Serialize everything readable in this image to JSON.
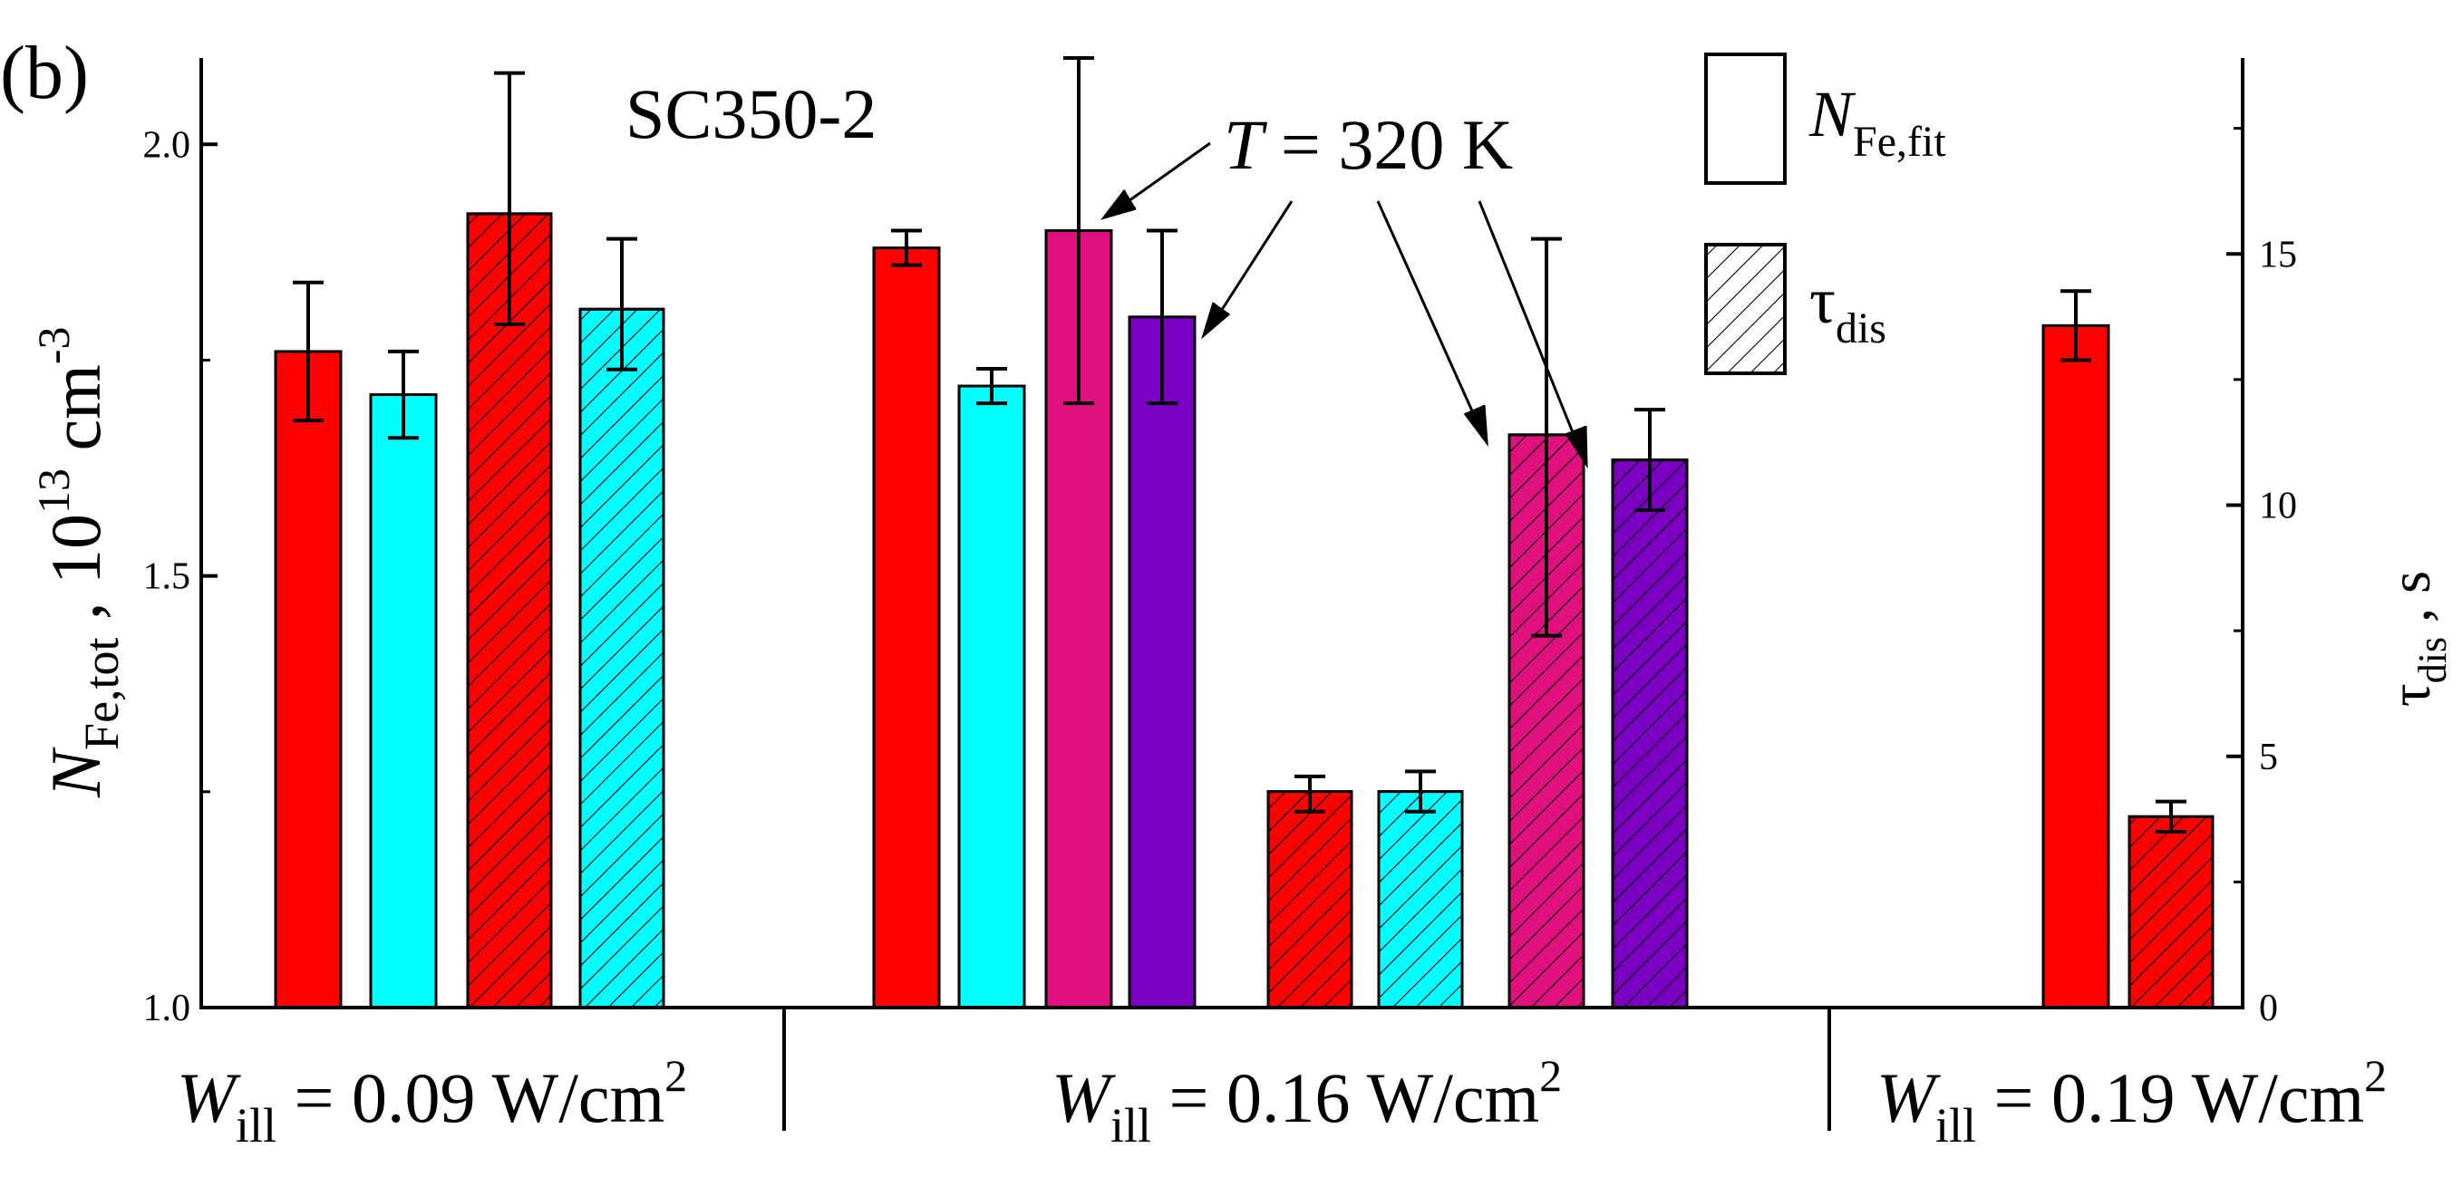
{
  "panel_label": "(b)",
  "sample_name": "SC350-2",
  "annotation_temperature": {
    "var": "T",
    "rest": " = 320 K"
  },
  "legend": [
    {
      "symbol": "N",
      "subscript": "Fe,fit",
      "pattern": "solid"
    },
    {
      "symbol": "τ",
      "subscript": "dis",
      "pattern": "hatched"
    }
  ],
  "left_axis": {
    "symbol": "N",
    "subscript": "Fe,tot",
    "unit_base": " , 10",
    "unit_exp": "13",
    "unit_mid": " cm",
    "unit_exp2": "-3",
    "ticks": [
      "1.0",
      "1.5",
      "2.0"
    ]
  },
  "right_axis": {
    "symbol": "τ",
    "subscript": "dis",
    "unit": " , s",
    "ticks": [
      "0",
      "5",
      "10",
      "15"
    ]
  },
  "groups": [
    {
      "symbol": "W",
      "subscript": "ill",
      "value": " = 0.09 W/cm",
      "sup": "2"
    },
    {
      "symbol": "W",
      "subscript": "ill",
      "value": " = 0.16 W/cm",
      "sup": "2"
    },
    {
      "symbol": "W",
      "subscript": "ill",
      "value": " = 0.19 W/cm",
      "sup": "2"
    }
  ],
  "colors": {
    "red": "#ff0000",
    "cyan": "#00ffff",
    "magenta": "#e0107e",
    "purple": "#7b00c2"
  },
  "chart_data": {
    "type": "bar",
    "title": "SC350-2",
    "left_ylim": [
      1.0,
      2.1
    ],
    "right_ylim": [
      0,
      18.9
    ],
    "grid": false,
    "legend_position": "top-right",
    "bars": [
      {
        "group": 0,
        "metric": "N_Fe,fit",
        "axis": "left",
        "value": 1.76,
        "err": [
          1.68,
          1.84
        ],
        "color": "red"
      },
      {
        "group": 0,
        "metric": "N_Fe,fit",
        "axis": "left",
        "value": 1.71,
        "err": [
          1.66,
          1.76
        ],
        "color": "cyan"
      },
      {
        "group": 0,
        "metric": "tau_dis",
        "axis": "right",
        "value": 15.8,
        "err": [
          13.6,
          18.6
        ],
        "color": "red"
      },
      {
        "group": 0,
        "metric": "tau_dis",
        "axis": "right",
        "value": 13.9,
        "err": [
          12.7,
          15.3
        ],
        "color": "cyan"
      },
      {
        "group": 1,
        "metric": "N_Fe,fit",
        "axis": "left",
        "value": 1.88,
        "err": [
          1.86,
          1.9
        ],
        "color": "red"
      },
      {
        "group": 1,
        "metric": "N_Fe,fit",
        "axis": "left",
        "value": 1.72,
        "err": [
          1.7,
          1.74
        ],
        "color": "cyan"
      },
      {
        "group": 1,
        "metric": "N_Fe,fit",
        "axis": "left",
        "value": 1.9,
        "err": [
          1.7,
          2.1
        ],
        "color": "magenta",
        "temperature": "320 K"
      },
      {
        "group": 1,
        "metric": "N_Fe,fit",
        "axis": "left",
        "value": 1.8,
        "err": [
          1.7,
          1.9
        ],
        "color": "purple",
        "temperature": "320 K"
      },
      {
        "group": 1,
        "metric": "tau_dis",
        "axis": "right",
        "value": 4.3,
        "err": [
          3.9,
          4.6
        ],
        "color": "red"
      },
      {
        "group": 1,
        "metric": "tau_dis",
        "axis": "right",
        "value": 4.3,
        "err": [
          3.9,
          4.7
        ],
        "color": "cyan"
      },
      {
        "group": 1,
        "metric": "tau_dis",
        "axis": "right",
        "value": 11.4,
        "err": [
          7.4,
          15.3
        ],
        "color": "magenta",
        "temperature": "320 K"
      },
      {
        "group": 1,
        "metric": "tau_dis",
        "axis": "right",
        "value": 10.9,
        "err": [
          9.9,
          11.9
        ],
        "color": "purple",
        "temperature": "320 K"
      },
      {
        "group": 2,
        "metric": "N_Fe,fit",
        "axis": "left",
        "value": 1.79,
        "err": [
          1.75,
          1.83
        ],
        "color": "red"
      },
      {
        "group": 2,
        "metric": "tau_dis",
        "axis": "right",
        "value": 3.8,
        "err": [
          3.5,
          4.1
        ],
        "color": "red"
      }
    ]
  }
}
